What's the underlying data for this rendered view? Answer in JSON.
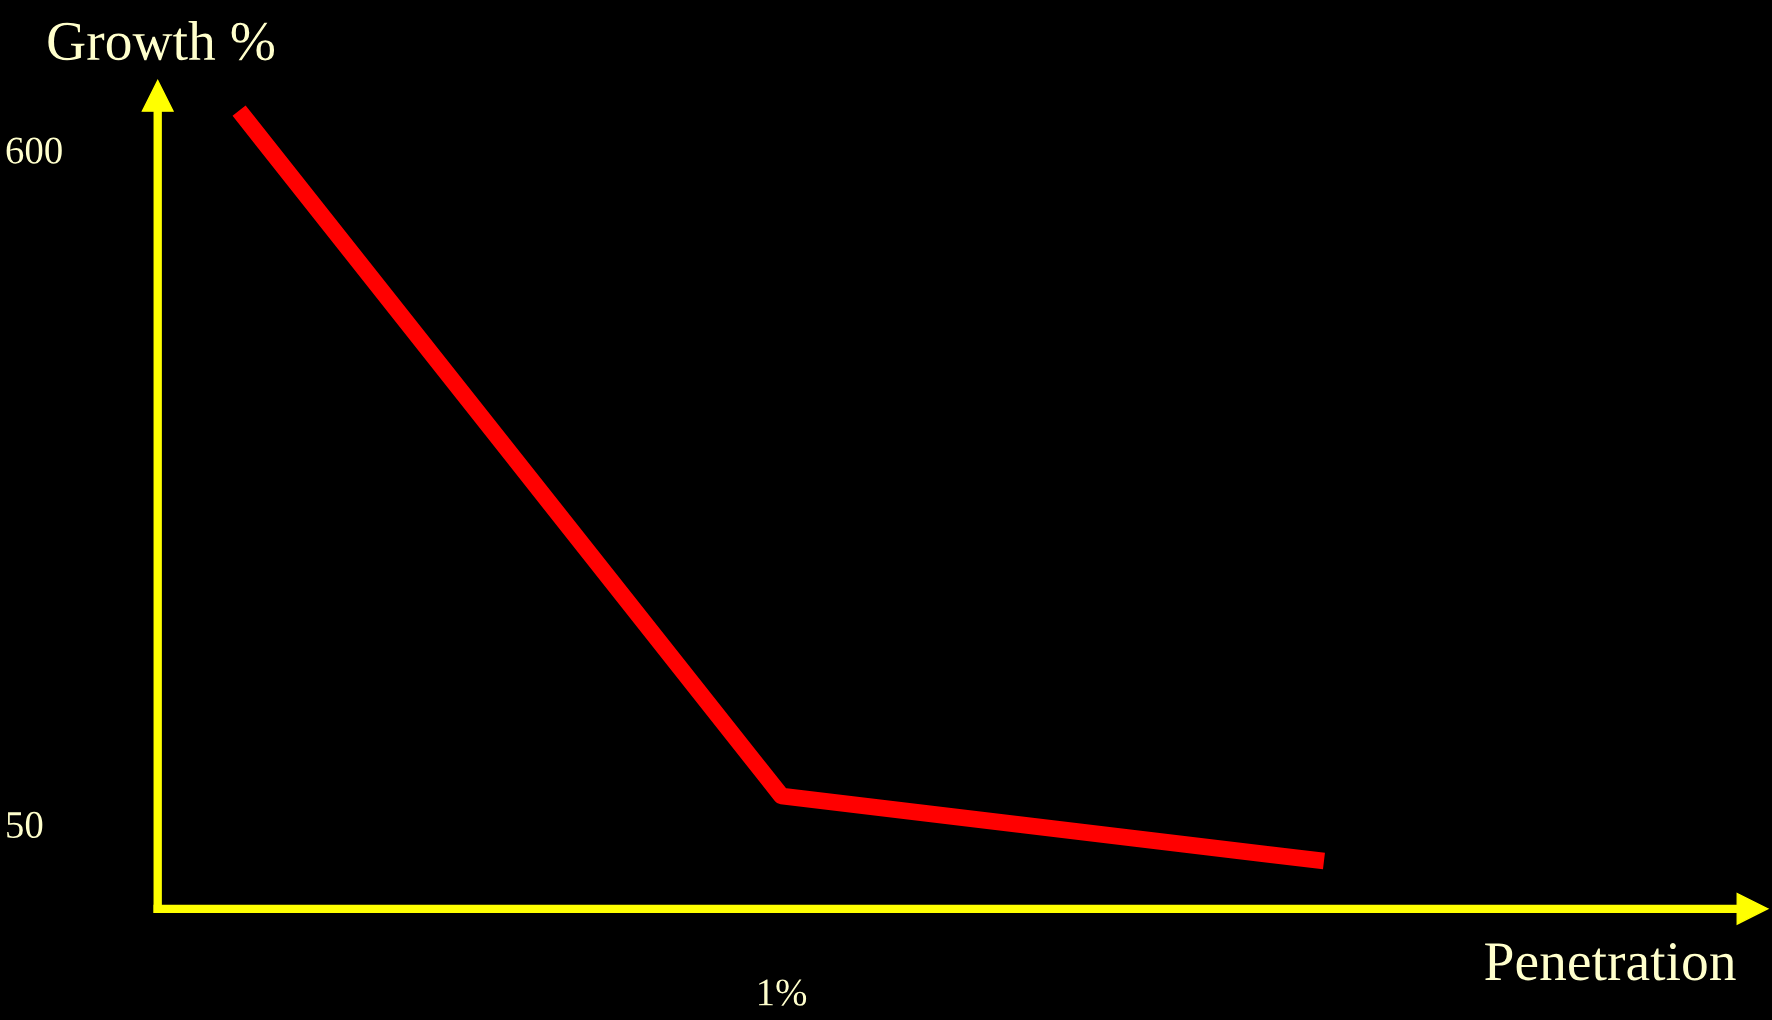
{
  "chart_data": {
    "type": "line",
    "xlabel": "Penetration",
    "ylabel": "Growth %",
    "categories": [
      null,
      "1%",
      null
    ],
    "series": [
      {
        "color": "#ff0000",
        "values": [
          632,
          73,
          20
        ]
      }
    ],
    "ylim": [
      -19,
      644
    ],
    "yticks": [
      600,
      50
    ],
    "grid": false,
    "legend": false,
    "marker": "none",
    "line_style": "solid"
  }
}
